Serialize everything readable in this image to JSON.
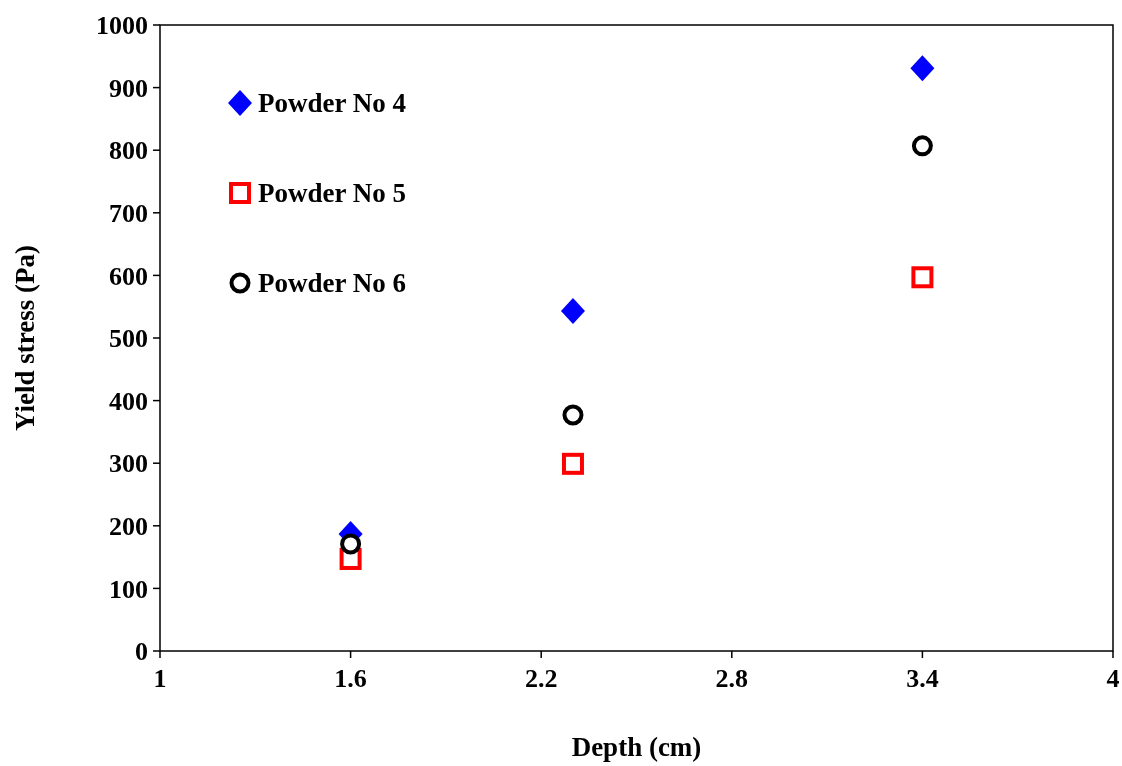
{
  "chart_data": {
    "type": "scatter",
    "xlabel": "Depth (cm)",
    "ylabel": "Yield stress (Pa)",
    "xlim": [
      1,
      4
    ],
    "xticks": [
      1,
      1.6,
      2.2,
      2.8,
      3.4,
      4
    ],
    "ylim": [
      0,
      1000
    ],
    "yticks": [
      0,
      100,
      200,
      300,
      400,
      500,
      600,
      700,
      800,
      900,
      1000
    ],
    "legend": "top left",
    "grid": false,
    "series": [
      {
        "name": "Powder No 4",
        "color": "#0000ff",
        "marker": "diamond",
        "x": [
          1.6,
          2.3,
          3.4
        ],
        "values": [
          187,
          543,
          931
        ]
      },
      {
        "name": "Powder No 5",
        "color": "#ff0000",
        "marker": "square",
        "x": [
          1.6,
          2.3,
          3.4
        ],
        "values": [
          147,
          299,
          597
        ]
      },
      {
        "name": "Powder No 6",
        "color": "#000000",
        "marker": "circle",
        "x": [
          1.6,
          2.3,
          3.4
        ],
        "values": [
          171,
          377,
          807
        ]
      }
    ]
  }
}
